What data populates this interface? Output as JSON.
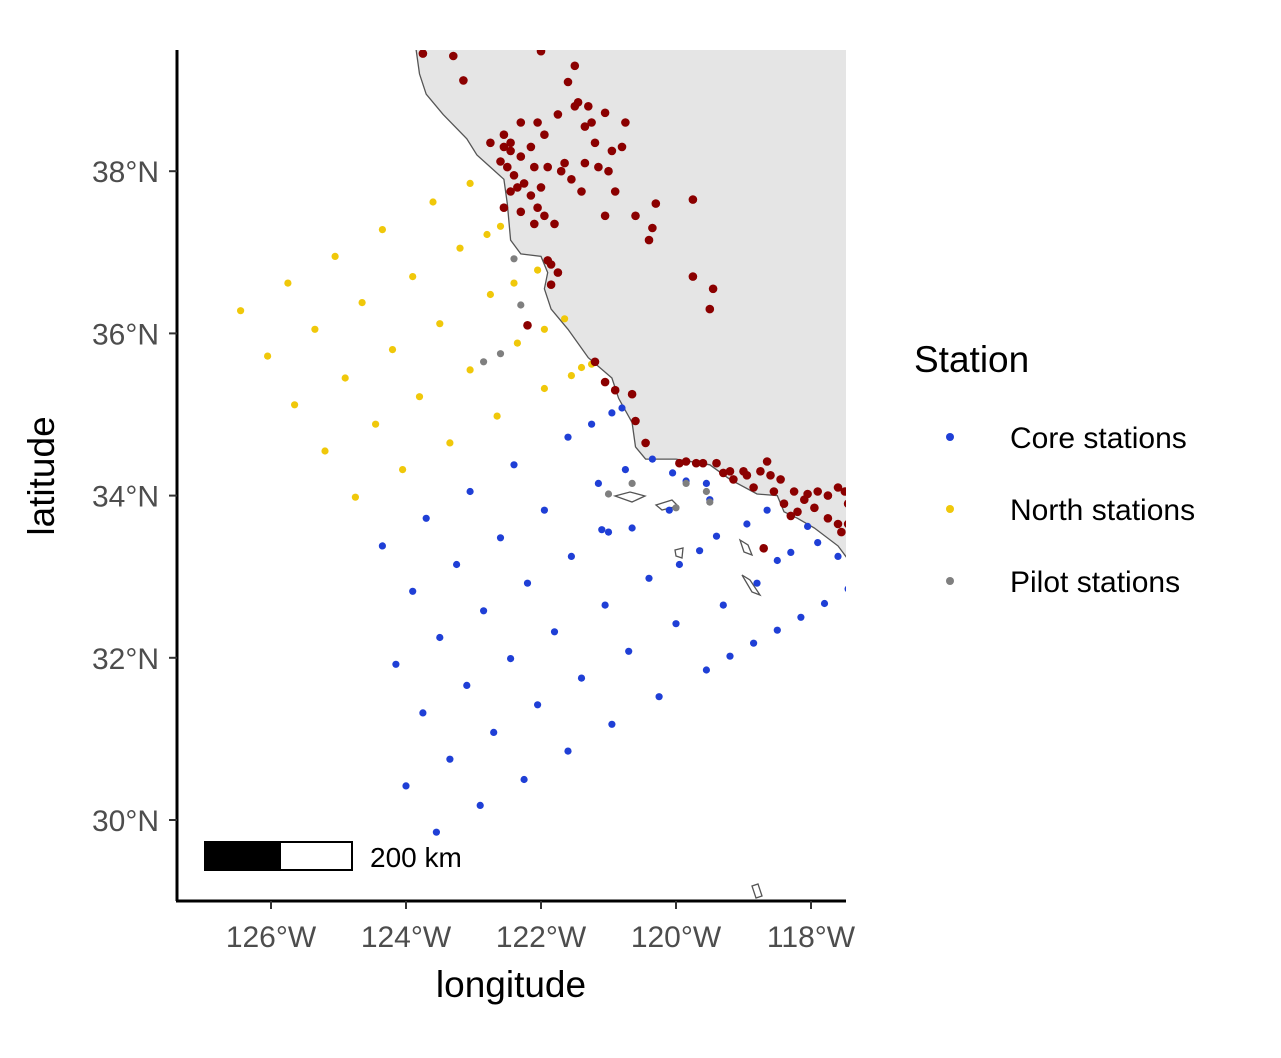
{
  "chart_data": {
    "type": "scatter",
    "xlabel": "longitude",
    "ylabel": "latitude",
    "xlim": [
      -127.3,
      -117.0
    ],
    "ylim": [
      29.0,
      39.5
    ],
    "x_ticks": [
      {
        "value": -126,
        "label": "126°W"
      },
      {
        "value": -124,
        "label": "124°W"
      },
      {
        "value": -122,
        "label": "122°W"
      },
      {
        "value": -120,
        "label": "120°W"
      },
      {
        "value": -118,
        "label": "118°W"
      }
    ],
    "y_ticks": [
      {
        "value": 30,
        "label": "30°N"
      },
      {
        "value": 32,
        "label": "32°N"
      },
      {
        "value": 34,
        "label": "34°N"
      },
      {
        "value": 36,
        "label": "36°N"
      },
      {
        "value": 38,
        "label": "38°N"
      }
    ],
    "grid": false,
    "land_color": "#e5e5e5",
    "coast_color": "#555555",
    "legend": {
      "title": "Station",
      "placement": "right",
      "entries": [
        {
          "label": "Core stations",
          "color": "#1f3fd6"
        },
        {
          "label": "North stations",
          "color": "#f0c80a"
        },
        {
          "label": "Pilot stations",
          "color": "#7f7f7f"
        }
      ]
    },
    "scale_bar": {
      "label": "200 km",
      "km": 200
    },
    "series": [
      {
        "name": "Core stations",
        "color": "#1f3fd6",
        "points": [
          [
            -123.55,
            29.85
          ],
          [
            -122.9,
            30.18
          ],
          [
            -122.25,
            30.5
          ],
          [
            -121.6,
            30.85
          ],
          [
            -124.0,
            30.42
          ],
          [
            -123.35,
            30.75
          ],
          [
            -122.7,
            31.08
          ],
          [
            -122.05,
            31.42
          ],
          [
            -121.4,
            31.75
          ],
          [
            -120.7,
            32.08
          ],
          [
            -124.15,
            31.92
          ],
          [
            -123.5,
            32.25
          ],
          [
            -122.85,
            32.58
          ],
          [
            -122.2,
            32.92
          ],
          [
            -121.55,
            33.25
          ],
          [
            -123.9,
            32.82
          ],
          [
            -123.25,
            33.15
          ],
          [
            -122.6,
            33.48
          ],
          [
            -121.95,
            33.82
          ],
          [
            -124.35,
            33.38
          ],
          [
            -123.7,
            33.72
          ],
          [
            -123.05,
            34.05
          ],
          [
            -122.4,
            34.38
          ],
          [
            -121.6,
            34.72
          ],
          [
            -123.75,
            31.32
          ],
          [
            -123.1,
            31.66
          ],
          [
            -122.45,
            31.99
          ],
          [
            -121.8,
            32.32
          ],
          [
            -121.05,
            32.65
          ],
          [
            -120.4,
            32.98
          ],
          [
            -120.95,
            31.18
          ],
          [
            -120.25,
            31.52
          ],
          [
            -119.55,
            31.85
          ],
          [
            -119.2,
            32.02
          ],
          [
            -118.85,
            32.18
          ],
          [
            -118.5,
            32.34
          ],
          [
            -118.15,
            32.5
          ],
          [
            -117.8,
            32.67
          ],
          [
            -117.45,
            32.85
          ],
          [
            -117.3,
            32.92
          ],
          [
            -121.1,
            33.58
          ],
          [
            -121.25,
            34.88
          ],
          [
            -120.95,
            35.02
          ],
          [
            -120.8,
            35.08
          ],
          [
            -120.75,
            34.32
          ],
          [
            -120.35,
            34.45
          ],
          [
            -120.05,
            34.28
          ],
          [
            -119.85,
            34.18
          ],
          [
            -119.55,
            34.15
          ],
          [
            -119.4,
            33.5
          ],
          [
            -118.95,
            33.65
          ],
          [
            -118.65,
            33.82
          ],
          [
            -118.3,
            33.3
          ],
          [
            -118.5,
            33.2
          ],
          [
            -118.05,
            33.62
          ],
          [
            -117.9,
            33.42
          ],
          [
            -117.6,
            33.25
          ],
          [
            -117.35,
            33.05
          ],
          [
            -120.1,
            33.82
          ],
          [
            -119.95,
            33.15
          ],
          [
            -119.65,
            33.32
          ],
          [
            -119.3,
            32.65
          ],
          [
            -120.65,
            33.6
          ],
          [
            -120.0,
            32.42
          ],
          [
            -118.8,
            32.92
          ],
          [
            -121.15,
            34.15
          ],
          [
            -121.0,
            33.55
          ],
          [
            -119.5,
            33.95
          ]
        ]
      },
      {
        "name": "North stations",
        "color": "#f0c80a",
        "points": [
          [
            -126.45,
            36.28
          ],
          [
            -126.05,
            35.72
          ],
          [
            -125.65,
            35.12
          ],
          [
            -125.2,
            34.55
          ],
          [
            -124.75,
            33.98
          ],
          [
            -125.75,
            36.62
          ],
          [
            -125.35,
            36.05
          ],
          [
            -124.9,
            35.45
          ],
          [
            -124.45,
            34.88
          ],
          [
            -124.05,
            34.32
          ],
          [
            -125.05,
            36.95
          ],
          [
            -124.65,
            36.38
          ],
          [
            -124.2,
            35.8
          ],
          [
            -123.8,
            35.22
          ],
          [
            -123.35,
            34.65
          ],
          [
            -124.35,
            37.28
          ],
          [
            -123.9,
            36.7
          ],
          [
            -123.5,
            36.12
          ],
          [
            -123.05,
            35.55
          ],
          [
            -122.65,
            34.98
          ],
          [
            -123.6,
            37.62
          ],
          [
            -123.2,
            37.05
          ],
          [
            -122.75,
            36.48
          ],
          [
            -122.35,
            35.88
          ],
          [
            -121.95,
            35.32
          ],
          [
            -123.05,
            37.85
          ],
          [
            -122.8,
            37.22
          ],
          [
            -122.6,
            37.32
          ],
          [
            -122.4,
            36.62
          ],
          [
            -121.95,
            36.05
          ],
          [
            -122.05,
            36.78
          ],
          [
            -121.65,
            36.18
          ],
          [
            -121.55,
            35.48
          ],
          [
            -121.4,
            35.58
          ],
          [
            -121.25,
            35.62
          ]
        ]
      },
      {
        "name": "Pilot stations",
        "color": "#7f7f7f",
        "points": [
          [
            -122.4,
            36.92
          ],
          [
            -122.3,
            36.35
          ],
          [
            -122.6,
            35.75
          ],
          [
            -122.85,
            35.65
          ],
          [
            -121.0,
            34.02
          ],
          [
            -120.65,
            34.15
          ],
          [
            -120.0,
            33.85
          ],
          [
            -119.85,
            34.15
          ],
          [
            -119.55,
            34.05
          ],
          [
            -119.5,
            33.92
          ]
        ]
      },
      {
        "name": "",
        "color": "#8b0000",
        "points": [
          [
            -123.75,
            39.45
          ],
          [
            -123.3,
            39.42
          ],
          [
            -123.15,
            39.12
          ],
          [
            -122.7,
            39.55
          ],
          [
            -122.0,
            39.48
          ],
          [
            -121.65,
            39.55
          ],
          [
            -121.5,
            39.3
          ],
          [
            -121.6,
            39.1
          ],
          [
            -121.45,
            38.85
          ],
          [
            -121.05,
            38.72
          ],
          [
            -120.75,
            38.6
          ],
          [
            -121.2,
            38.35
          ],
          [
            -121.0,
            38.0
          ],
          [
            -120.6,
            37.45
          ],
          [
            -120.35,
            37.3
          ],
          [
            -121.05,
            37.45
          ],
          [
            -121.4,
            37.75
          ],
          [
            -121.55,
            37.9
          ],
          [
            -121.7,
            38.0
          ],
          [
            -121.9,
            38.05
          ],
          [
            -122.1,
            38.05
          ],
          [
            -122.3,
            38.18
          ],
          [
            -122.45,
            38.25
          ],
          [
            -122.6,
            38.12
          ],
          [
            -122.75,
            38.35
          ],
          [
            -122.55,
            38.45
          ],
          [
            -122.5,
            38.05
          ],
          [
            -122.4,
            37.95
          ],
          [
            -122.35,
            37.8
          ],
          [
            -122.45,
            37.75
          ],
          [
            -122.25,
            37.85
          ],
          [
            -122.15,
            37.7
          ],
          [
            -122.05,
            37.55
          ],
          [
            -121.95,
            37.45
          ],
          [
            -121.8,
            37.35
          ],
          [
            -122.3,
            37.5
          ],
          [
            -122.55,
            37.55
          ],
          [
            -122.1,
            37.35
          ],
          [
            -121.9,
            36.9
          ],
          [
            -121.85,
            36.6
          ],
          [
            -121.75,
            36.75
          ],
          [
            -121.2,
            35.65
          ],
          [
            -121.05,
            35.4
          ],
          [
            -120.9,
            35.3
          ],
          [
            -120.65,
            35.25
          ],
          [
            -120.6,
            34.92
          ],
          [
            -120.45,
            34.65
          ],
          [
            -119.85,
            34.42
          ],
          [
            -119.6,
            34.4
          ],
          [
            -119.3,
            34.28
          ],
          [
            -119.15,
            34.2
          ],
          [
            -118.85,
            34.1
          ],
          [
            -118.55,
            34.05
          ],
          [
            -118.4,
            33.9
          ],
          [
            -118.3,
            33.75
          ],
          [
            -118.2,
            33.8
          ],
          [
            -118.1,
            33.95
          ],
          [
            -117.95,
            33.85
          ],
          [
            -117.75,
            33.72
          ],
          [
            -117.55,
            33.55
          ],
          [
            -117.4,
            33.2
          ],
          [
            -117.25,
            32.95
          ],
          [
            -117.2,
            32.75
          ],
          [
            -117.15,
            32.65
          ],
          [
            -117.3,
            32.72
          ],
          [
            -117.1,
            33.05
          ],
          [
            -117.5,
            34.05
          ],
          [
            -117.35,
            34.62
          ],
          [
            -119.0,
            34.3
          ],
          [
            -118.65,
            34.42
          ],
          [
            -119.75,
            36.7
          ],
          [
            -119.5,
            36.3
          ],
          [
            -119.45,
            36.55
          ],
          [
            -119.75,
            37.65
          ],
          [
            -120.3,
            37.6
          ],
          [
            -120.4,
            37.15
          ],
          [
            -120.9,
            37.75
          ],
          [
            -121.15,
            38.05
          ],
          [
            -121.35,
            38.55
          ],
          [
            -121.5,
            38.8
          ],
          [
            -121.75,
            38.7
          ],
          [
            -121.95,
            38.45
          ],
          [
            -122.15,
            38.3
          ],
          [
            -122.05,
            38.6
          ],
          [
            -122.3,
            38.6
          ],
          [
            -121.25,
            38.6
          ],
          [
            -120.95,
            38.25
          ],
          [
            -120.8,
            38.3
          ],
          [
            -118.7,
            33.35
          ],
          [
            -118.05,
            34.02
          ],
          [
            -117.75,
            34.0
          ],
          [
            -117.6,
            34.1
          ],
          [
            -117.45,
            33.9
          ],
          [
            -117.25,
            34.0
          ],
          [
            -117.2,
            33.85
          ],
          [
            -117.45,
            33.65
          ],
          [
            -117.6,
            33.65
          ],
          [
            -117.9,
            34.05
          ],
          [
            -118.25,
            34.05
          ],
          [
            -118.45,
            34.2
          ],
          [
            -118.6,
            34.25
          ],
          [
            -118.75,
            34.3
          ],
          [
            -118.95,
            34.25
          ],
          [
            -119.2,
            34.3
          ],
          [
            -119.4,
            34.4
          ],
          [
            -119.7,
            34.4
          ],
          [
            -119.95,
            34.4
          ],
          [
            -122.45,
            38.35
          ],
          [
            -122.55,
            38.3
          ],
          [
            -121.85,
            36.85
          ],
          [
            -122.2,
            36.1
          ],
          [
            -121.65,
            38.1
          ],
          [
            -121.35,
            38.1
          ],
          [
            -122.0,
            37.8
          ],
          [
            -121.3,
            38.8
          ]
        ]
      }
    ]
  }
}
